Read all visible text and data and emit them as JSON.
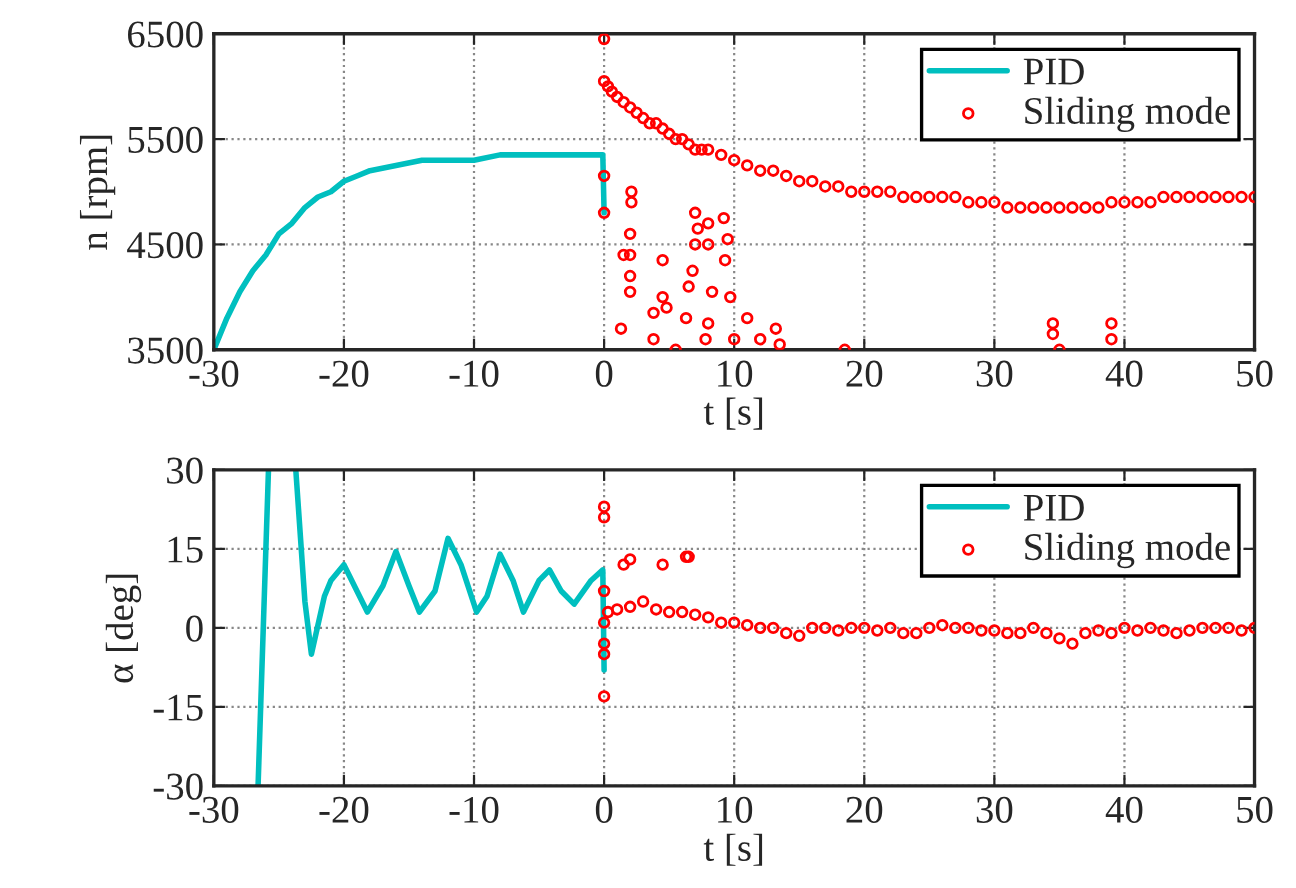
{
  "chart_data": [
    {
      "type": "line",
      "xlabel": "t [s]",
      "ylabel": "n [rpm]",
      "xlim": [
        -30,
        50
      ],
      "ylim": [
        3500,
        6500
      ],
      "xticks": [
        -30,
        -20,
        -10,
        0,
        10,
        20,
        30,
        40,
        50
      ],
      "yticks": [
        3500,
        4500,
        5500,
        6500
      ],
      "grid": true,
      "legend": "top right",
      "series": [
        {
          "name": "PID",
          "color": "#00bfbf",
          "x": [
            -30,
            -29,
            -28,
            -27,
            -26,
            -25,
            -24,
            -23,
            -22,
            -21,
            -20,
            -19,
            -18,
            -16,
            -14,
            -12,
            -10,
            -8,
            -6,
            -4,
            -2,
            -0.1,
            0
          ],
          "values": [
            3500,
            3800,
            4050,
            4250,
            4400,
            4600,
            4700,
            4850,
            4950,
            5000,
            5100,
            5150,
            5200,
            5250,
            5300,
            5300,
            5300,
            5350,
            5350,
            5350,
            5350,
            5350,
            4800
          ]
        },
        {
          "name": "Sliding mode",
          "type": "scatter",
          "marker": "circle",
          "color": "#ff0000",
          "x": [
            0,
            0,
            0,
            0,
            0.3,
            0.6,
            1,
            1.5,
            2,
            2.5,
            3,
            3.5,
            4,
            4.5,
            5,
            5.5,
            6,
            6.5,
            7,
            7.5,
            8,
            9,
            10,
            11,
            12,
            13,
            14,
            15,
            16,
            17,
            18,
            19,
            20,
            21,
            22,
            23,
            24,
            25,
            26,
            27,
            28,
            29,
            30,
            31,
            32,
            33,
            34,
            35,
            36,
            37,
            38,
            39,
            40,
            41,
            42,
            43,
            44,
            45,
            46,
            47,
            48,
            49,
            50,
            1.3,
            1.5,
            2,
            2.1,
            2.1,
            2,
            2,
            2,
            3.8,
            3.8,
            4.5,
            4.5,
            4.8,
            5.5,
            7,
            7.2,
            7,
            6.8,
            6.5,
            6.3,
            8,
            8,
            8.3,
            8,
            7.8,
            9.2,
            9.5,
            9.3,
            9.7,
            10,
            11,
            12,
            13.2,
            13.5,
            18.5,
            34.5,
            34.5,
            35,
            39,
            39
          ],
          "values": [
            6450,
            6050,
            5150,
            4800,
            6000,
            5950,
            5900,
            5850,
            5800,
            5750,
            5700,
            5650,
            5650,
            5600,
            5550,
            5500,
            5500,
            5450,
            5400,
            5400,
            5400,
            5350,
            5300,
            5250,
            5200,
            5200,
            5150,
            5100,
            5100,
            5050,
            5050,
            5000,
            5000,
            5000,
            5000,
            4950,
            4950,
            4950,
            4950,
            4950,
            4900,
            4900,
            4900,
            4850,
            4850,
            4850,
            4850,
            4850,
            4850,
            4850,
            4850,
            4900,
            4900,
            4900,
            4900,
            4950,
            4950,
            4950,
            4950,
            4950,
            4950,
            4950,
            4950,
            3700,
            4400,
            4400,
            5000,
            4900,
            4600,
            4200,
            4050,
            3850,
            3600,
            4350,
            4000,
            3900,
            3500,
            4800,
            4650,
            4500,
            4250,
            4100,
            3800,
            4700,
            4500,
            4050,
            3750,
            3600,
            4750,
            4550,
            4350,
            4000,
            3600,
            3800,
            3600,
            3700,
            3550,
            3500,
            3750,
            3650,
            3500,
            3750,
            3600
          ]
        }
      ]
    },
    {
      "type": "line",
      "xlabel": "t [s]",
      "ylabel": "α [deg]",
      "xlim": [
        -30,
        50
      ],
      "ylim": [
        -30,
        30
      ],
      "xticks": [
        -30,
        -20,
        -10,
        0,
        10,
        20,
        30,
        40,
        50
      ],
      "yticks": [
        -30,
        -15,
        0,
        15,
        30
      ],
      "grid": true,
      "legend": "top right",
      "series": [
        {
          "name": "PID",
          "color": "#00bfbf",
          "x": [
            -26.6,
            -25.8,
            -25,
            -23.7,
            -23,
            -22.5,
            -21.5,
            -21,
            -20,
            -19,
            -18.2,
            -17,
            -16,
            -15,
            -14.2,
            -13,
            -12,
            -11,
            -9.8,
            -9,
            -8,
            -7,
            -6.2,
            -5,
            -4.2,
            -3.3,
            -2.3,
            -1,
            -0.1,
            0
          ],
          "values": [
            -30,
            30,
            null,
            30,
            5,
            -5,
            6,
            9,
            12,
            7,
            3,
            8,
            14.5,
            8,
            3,
            7,
            17,
            12,
            3,
            6,
            14,
            9,
            3,
            9,
            11,
            7,
            4.5,
            9,
            11,
            -8
          ]
        },
        {
          "name": "Sliding mode",
          "type": "scatter",
          "marker": "circle",
          "color": "#ff0000",
          "x": [
            0,
            0,
            0,
            0,
            0,
            0,
            0,
            0.3,
            1,
            2,
            3,
            4,
            5,
            6,
            7,
            8,
            9,
            10,
            11,
            12,
            13,
            14,
            15,
            16,
            17,
            18,
            19,
            20,
            21,
            22,
            23,
            24,
            25,
            26,
            27,
            28,
            29,
            30,
            31,
            32,
            33,
            34,
            35,
            36,
            37,
            38,
            39,
            40,
            41,
            42,
            43,
            44,
            45,
            46,
            47,
            48,
            49,
            50,
            1.5,
            2,
            4.5,
            6.3,
            6.5
          ],
          "values": [
            23,
            21,
            7,
            1,
            -3,
            -5,
            -13,
            3,
            3.5,
            4,
            5,
            3.5,
            3,
            3,
            2.5,
            2,
            1,
            1,
            0.5,
            0,
            0,
            -1,
            -1.5,
            0,
            0,
            -0.5,
            0,
            0,
            -0.5,
            0,
            -1,
            -1,
            0,
            0.5,
            0,
            0,
            -0.5,
            -0.5,
            -1,
            -1,
            0,
            -1,
            -2,
            -3,
            -1,
            -0.5,
            -1,
            0,
            -0.5,
            0,
            -0.5,
            -1,
            -0.5,
            0,
            0,
            0,
            -0.5,
            0,
            12,
            13,
            12,
            13.5,
            13.5
          ]
        }
      ]
    }
  ]
}
